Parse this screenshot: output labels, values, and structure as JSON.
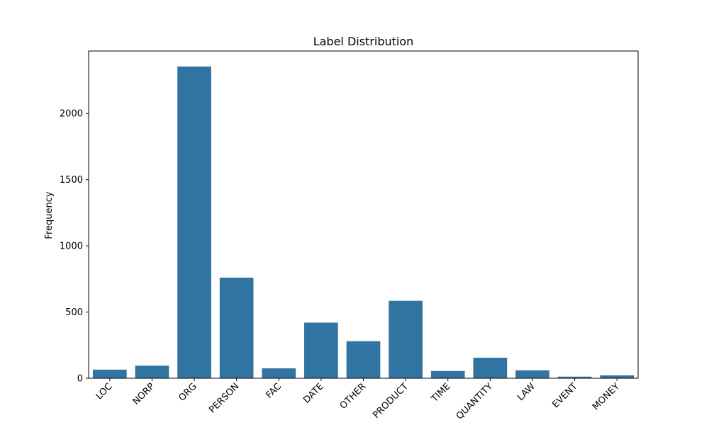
{
  "chart_data": {
    "type": "bar",
    "title": "Label Distribution",
    "xlabel": "",
    "ylabel": "Frequency",
    "categories": [
      "LOC",
      "NORP",
      "ORG",
      "PERSON",
      "FAC",
      "DATE",
      "OTHER",
      "PRODUCT",
      "TIME",
      "QUANTITY",
      "LAW",
      "EVENT",
      "MONEY"
    ],
    "values": [
      65,
      95,
      2355,
      760,
      75,
      420,
      280,
      585,
      55,
      155,
      60,
      12,
      22
    ],
    "ylim": [
      0,
      2472
    ],
    "yticks": [
      0,
      500,
      1000,
      1500,
      2000
    ],
    "bar_color": "#3274a1",
    "grid": false,
    "legend": "none"
  }
}
